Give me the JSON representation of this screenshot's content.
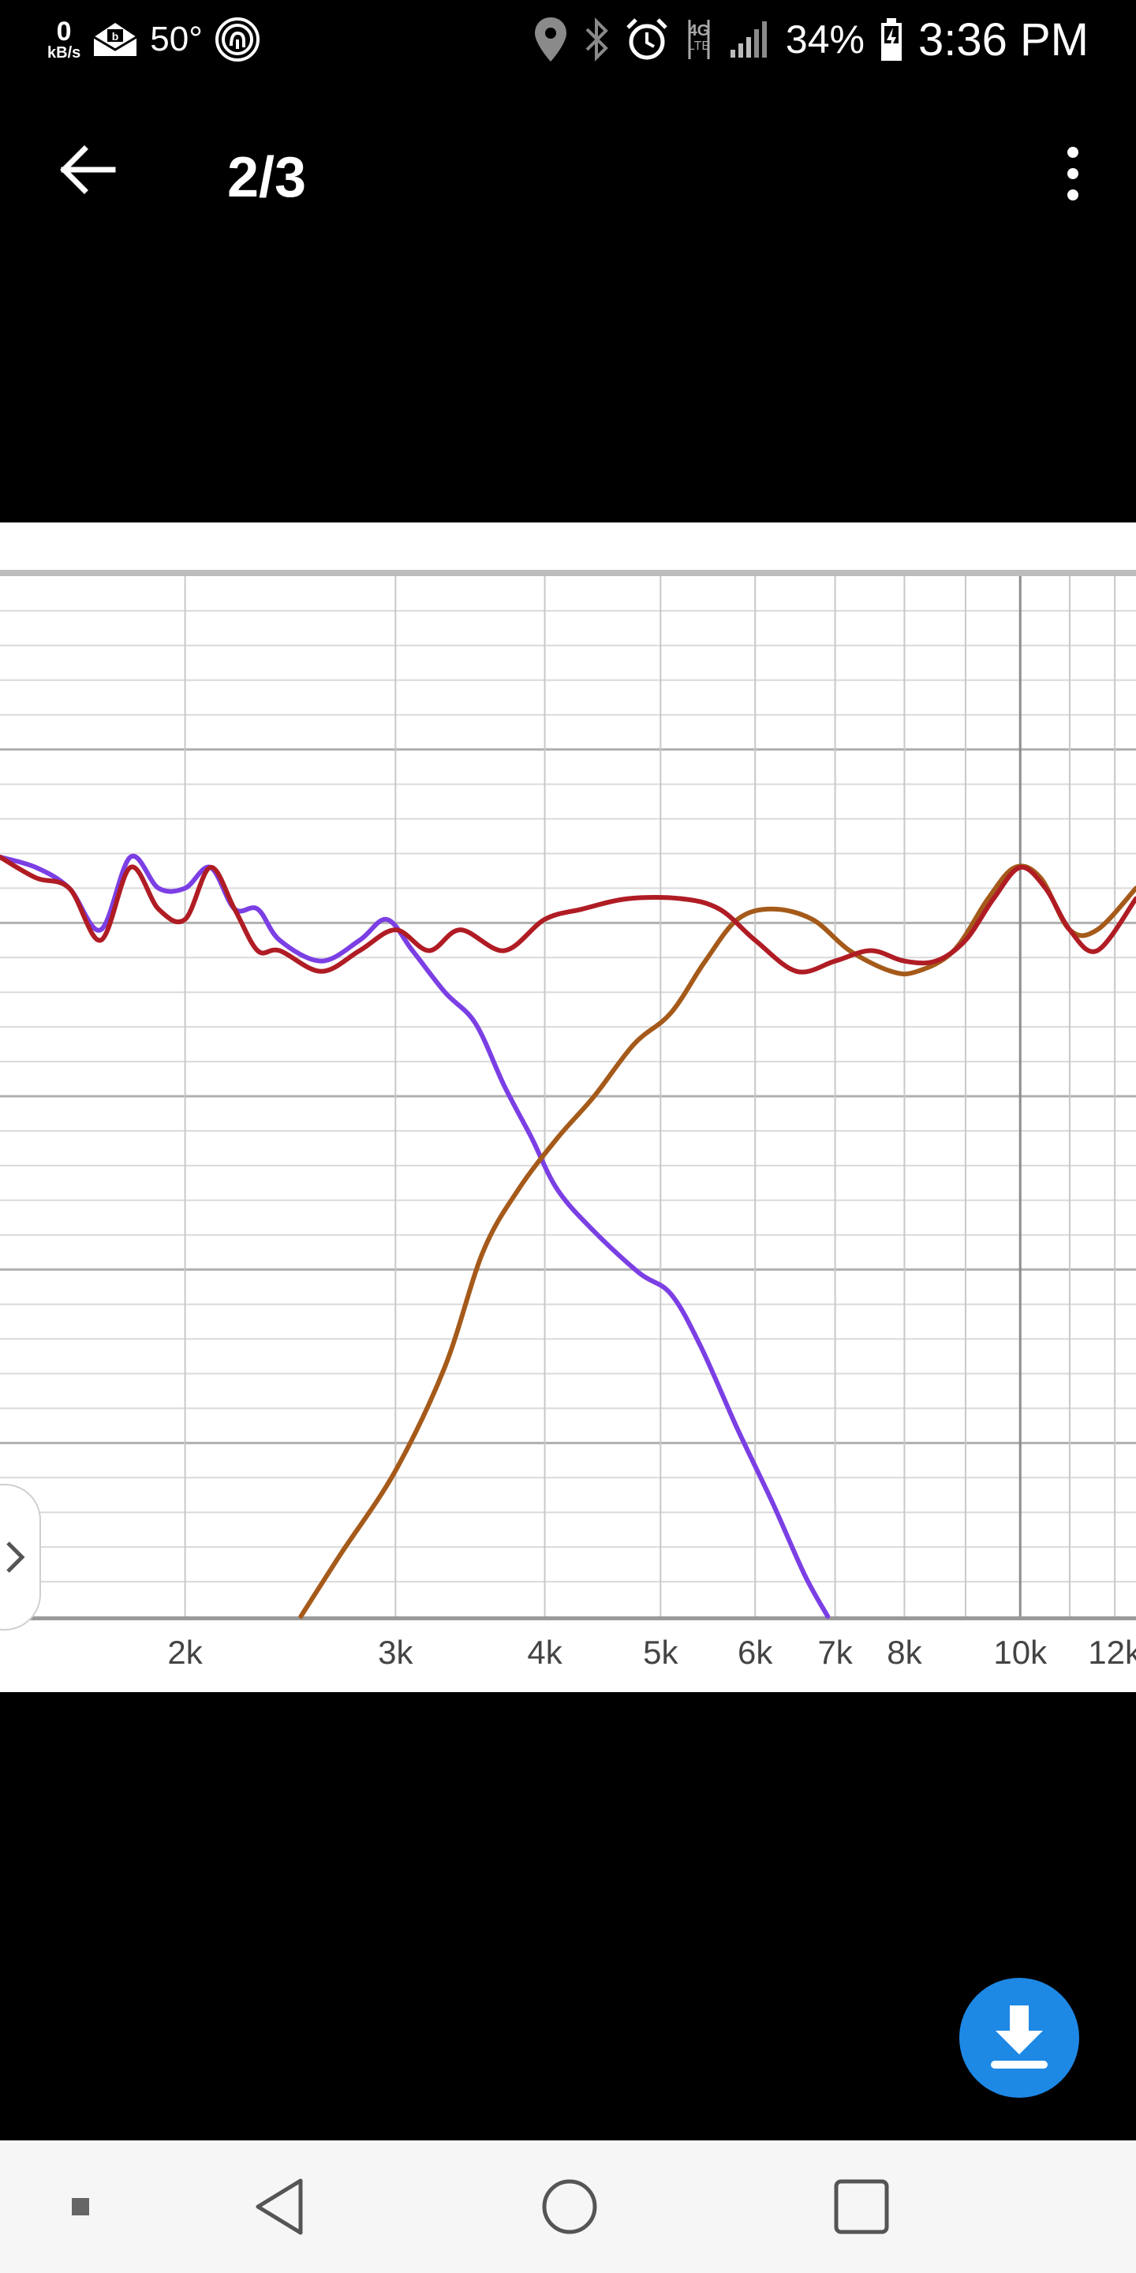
{
  "status_bar": {
    "net_speed_value": "0",
    "net_speed_unit": "kB/s",
    "temperature": "50°",
    "network_type": "4G LTE",
    "battery": "34%",
    "time": "3:36 PM",
    "icons": [
      "email-icon",
      "fingerprint-icon",
      "location-icon",
      "bluetooth-icon",
      "alarm-icon",
      "signal-icon",
      "battery-charging-icon"
    ]
  },
  "app_bar": {
    "title": "2/3",
    "back_icon": "arrow-left-icon",
    "menu_icon": "more-vert-icon"
  },
  "side_handle": {
    "icon": "chevron-right-icon"
  },
  "fab": {
    "icon": "download-icon",
    "color": "#1e88e5"
  },
  "nav_bar": {
    "buttons": [
      "switch-app-icon",
      "back-triangle-icon",
      "home-circle-icon",
      "recents-square-icon"
    ]
  },
  "chart_data": {
    "type": "line",
    "xscale": "log",
    "xlim": [
      1400,
      12500
    ],
    "ylim": [
      0,
      1
    ],
    "grid": true,
    "x_tick_labels": [
      {
        "x": 2000,
        "label": "2k"
      },
      {
        "x": 3000,
        "label": "3k"
      },
      {
        "x": 4000,
        "label": "4k"
      },
      {
        "x": 5000,
        "label": "5k"
      },
      {
        "x": 6000,
        "label": "6k"
      },
      {
        "x": 7000,
        "label": "7k"
      },
      {
        "x": 8000,
        "label": "8k"
      },
      {
        "x": 10000,
        "label": "10k"
      },
      {
        "x": 12000,
        "label": "12k"
      }
    ],
    "series": [
      {
        "color": "#7b3fe4",
        "points": [
          [
            1400,
            0.73
          ],
          [
            1500,
            0.72
          ],
          [
            1600,
            0.7
          ],
          [
            1700,
            0.66
          ],
          [
            1800,
            0.73
          ],
          [
            1900,
            0.7
          ],
          [
            2000,
            0.7
          ],
          [
            2100,
            0.72
          ],
          [
            2200,
            0.68
          ],
          [
            2300,
            0.68
          ],
          [
            2400,
            0.65
          ],
          [
            2600,
            0.63
          ],
          [
            2800,
            0.65
          ],
          [
            2950,
            0.67
          ],
          [
            3100,
            0.64
          ],
          [
            3300,
            0.6
          ],
          [
            3500,
            0.57
          ],
          [
            3700,
            0.51
          ],
          [
            3900,
            0.46
          ],
          [
            4100,
            0.41
          ],
          [
            4400,
            0.37
          ],
          [
            4800,
            0.33
          ],
          [
            5100,
            0.31
          ],
          [
            5400,
            0.26
          ],
          [
            5800,
            0.18
          ],
          [
            6200,
            0.11
          ],
          [
            6600,
            0.04
          ],
          [
            6900,
            0.0
          ]
        ]
      },
      {
        "color": "#a55a1a",
        "points": [
          [
            2500,
            0.0
          ],
          [
            2700,
            0.06
          ],
          [
            3000,
            0.14
          ],
          [
            3300,
            0.24
          ],
          [
            3550,
            0.35
          ],
          [
            3800,
            0.41
          ],
          [
            4100,
            0.46
          ],
          [
            4400,
            0.5
          ],
          [
            4750,
            0.55
          ],
          [
            5100,
            0.58
          ],
          [
            5450,
            0.63
          ],
          [
            5800,
            0.67
          ],
          [
            6200,
            0.68
          ],
          [
            6700,
            0.67
          ],
          [
            7200,
            0.64
          ],
          [
            7800,
            0.62
          ],
          [
            8200,
            0.62
          ],
          [
            8800,
            0.64
          ],
          [
            9400,
            0.69
          ],
          [
            9900,
            0.72
          ],
          [
            10400,
            0.71
          ],
          [
            11000,
            0.66
          ],
          [
            11600,
            0.66
          ],
          [
            12500,
            0.7
          ]
        ]
      },
      {
        "color": "#b01c24",
        "points": [
          [
            1400,
            0.73
          ],
          [
            1500,
            0.71
          ],
          [
            1600,
            0.7
          ],
          [
            1700,
            0.65
          ],
          [
            1800,
            0.72
          ],
          [
            1900,
            0.68
          ],
          [
            2000,
            0.67
          ],
          [
            2100,
            0.72
          ],
          [
            2200,
            0.68
          ],
          [
            2300,
            0.64
          ],
          [
            2400,
            0.64
          ],
          [
            2600,
            0.62
          ],
          [
            2800,
            0.64
          ],
          [
            3000,
            0.66
          ],
          [
            3200,
            0.64
          ],
          [
            3400,
            0.66
          ],
          [
            3700,
            0.64
          ],
          [
            4000,
            0.67
          ],
          [
            4300,
            0.68
          ],
          [
            4700,
            0.69
          ],
          [
            5200,
            0.69
          ],
          [
            5600,
            0.68
          ],
          [
            6000,
            0.65
          ],
          [
            6500,
            0.62
          ],
          [
            7000,
            0.63
          ],
          [
            7500,
            0.64
          ],
          [
            8000,
            0.63
          ],
          [
            8500,
            0.63
          ],
          [
            9000,
            0.65
          ],
          [
            9500,
            0.69
          ],
          [
            10000,
            0.72
          ],
          [
            10500,
            0.7
          ],
          [
            11000,
            0.66
          ],
          [
            11600,
            0.64
          ],
          [
            12500,
            0.69
          ]
        ]
      }
    ]
  }
}
